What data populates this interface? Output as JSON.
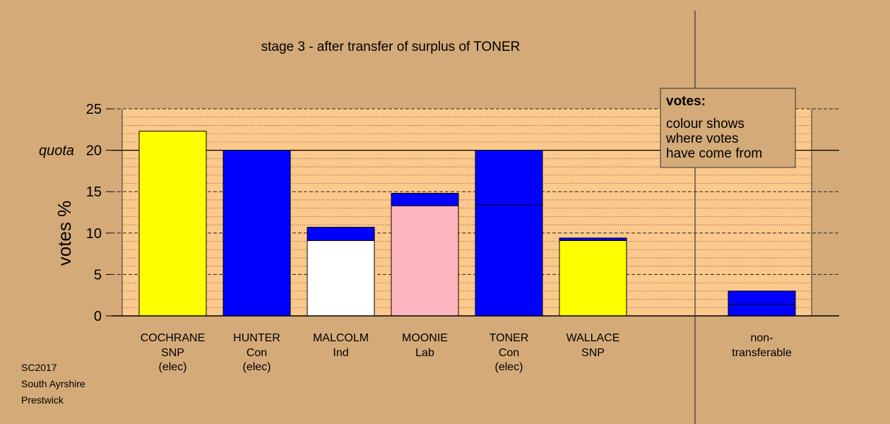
{
  "chart_data": {
    "type": "bar",
    "title": "stage 3 - after transfer of surplus of TONER",
    "ylabel": "votes %",
    "ylim": [
      0,
      25
    ],
    "yticks": [
      0,
      5,
      10,
      15,
      20,
      25
    ],
    "quota": 20,
    "quota_label": "quota",
    "colors": {
      "background": "#d4aa78",
      "plot_area": "#fcc98c",
      "SNP": "#ffff00",
      "Con": "#0000ff",
      "Ind": "#ffffff",
      "Lab": "#ffb6c1"
    },
    "candidates": [
      {
        "name": "COCHRANE",
        "party": "SNP",
        "status": "(elec)",
        "segments": [
          {
            "value": 22.3,
            "color": "#ffff00"
          }
        ]
      },
      {
        "name": "HUNTER",
        "party": "Con",
        "status": "(elec)",
        "segments": [
          {
            "value": 20.0,
            "color": "#0000ff"
          }
        ]
      },
      {
        "name": "MALCOLM",
        "party": "Ind",
        "status": "",
        "segments": [
          {
            "value": 9.1,
            "color": "#ffffff"
          },
          {
            "value": 1.6,
            "color": "#0000ff"
          }
        ]
      },
      {
        "name": "MOONIE",
        "party": "Lab",
        "status": "",
        "segments": [
          {
            "value": 13.3,
            "color": "#ffb6c1"
          },
          {
            "value": 1.5,
            "color": "#0000ff"
          }
        ]
      },
      {
        "name": "TONER",
        "party": "Con",
        "status": "(elec)",
        "segments": [
          {
            "value": 13.4,
            "color": "#0000ff"
          },
          {
            "value": 6.6,
            "color": "#0000ff"
          }
        ]
      },
      {
        "name": "WALLACE",
        "party": "SNP",
        "status": "",
        "segments": [
          {
            "value": 9.1,
            "color": "#ffff00"
          },
          {
            "value": 0.3,
            "color": "#0000ff"
          }
        ]
      }
    ],
    "non_transferable": {
      "label": [
        "non-",
        "transferable"
      ],
      "segments": [
        {
          "value": 1.4,
          "color": "#0000ff"
        },
        {
          "value": 1.6,
          "color": "#0000ff"
        }
      ]
    },
    "legend": {
      "title": "votes:",
      "lines": [
        "colour shows",
        "where votes",
        "have come from"
      ],
      "placement": "top-right"
    }
  },
  "footer": {
    "lines": [
      "SC2017",
      "South Ayrshire",
      "Prestwick"
    ]
  }
}
